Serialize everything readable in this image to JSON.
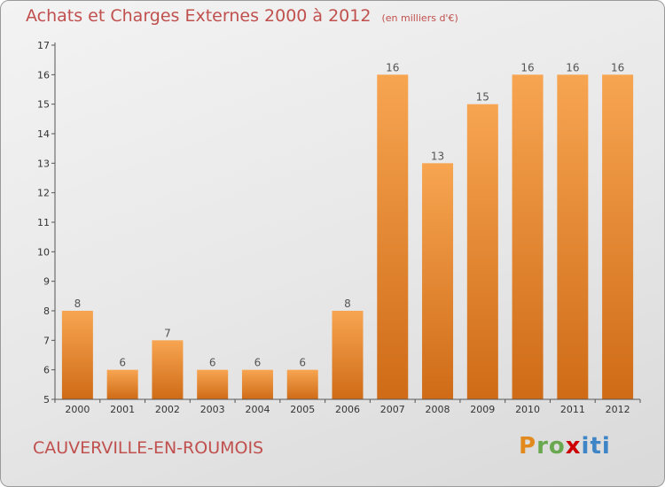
{
  "chart_data": {
    "type": "bar",
    "title": "Achats et Charges Externes 2000 à 2012",
    "subtitle": "(en milliers d'€)",
    "categories": [
      "2000",
      "2001",
      "2002",
      "2003",
      "2004",
      "2005",
      "2006",
      "2007",
      "2008",
      "2009",
      "2010",
      "2011",
      "2012"
    ],
    "values": [
      8,
      6,
      7,
      6,
      6,
      6,
      8,
      16,
      13,
      15,
      16,
      16,
      16
    ],
    "ylim": [
      5,
      17
    ],
    "yticks": [
      5,
      6,
      7,
      8,
      9,
      10,
      11,
      12,
      13,
      14,
      15,
      16,
      17
    ],
    "xlabel": "",
    "ylabel": "",
    "grid": false,
    "bar_color": "#f0943a"
  },
  "commune": "CAUVERVILLE-EN-ROUMOIS",
  "logo": {
    "name": "Proxiti",
    "parts": [
      "P",
      "ro",
      "x",
      "iti"
    ]
  }
}
